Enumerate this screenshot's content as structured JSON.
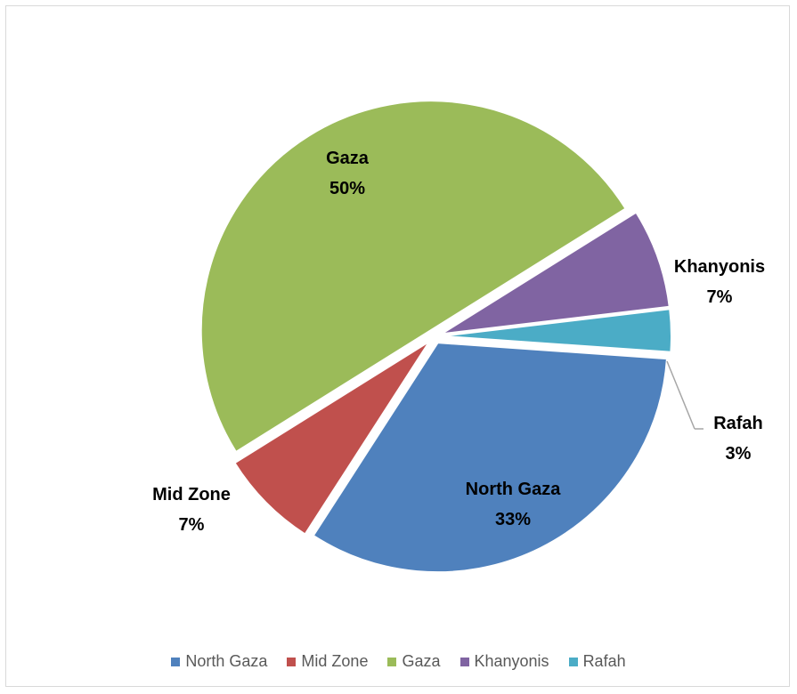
{
  "chart_data": {
    "type": "pie",
    "title": "",
    "slices": [
      {
        "label": "North Gaza",
        "value": 33,
        "display": "33%",
        "color": "#4f81bd"
      },
      {
        "label": "Mid Zone",
        "value": 7,
        "display": "7%",
        "color": "#c0504d"
      },
      {
        "label": "Gaza",
        "value": 50,
        "display": "50%",
        "color": "#9bbb59"
      },
      {
        "label": "Khanyonis",
        "value": 7,
        "display": "7%",
        "color": "#8064a2"
      },
      {
        "label": "Rafah",
        "value": 3,
        "display": "3%",
        "color": "#4bacc6"
      }
    ],
    "legend_position": "bottom",
    "data_labels": true,
    "exploded": true
  }
}
